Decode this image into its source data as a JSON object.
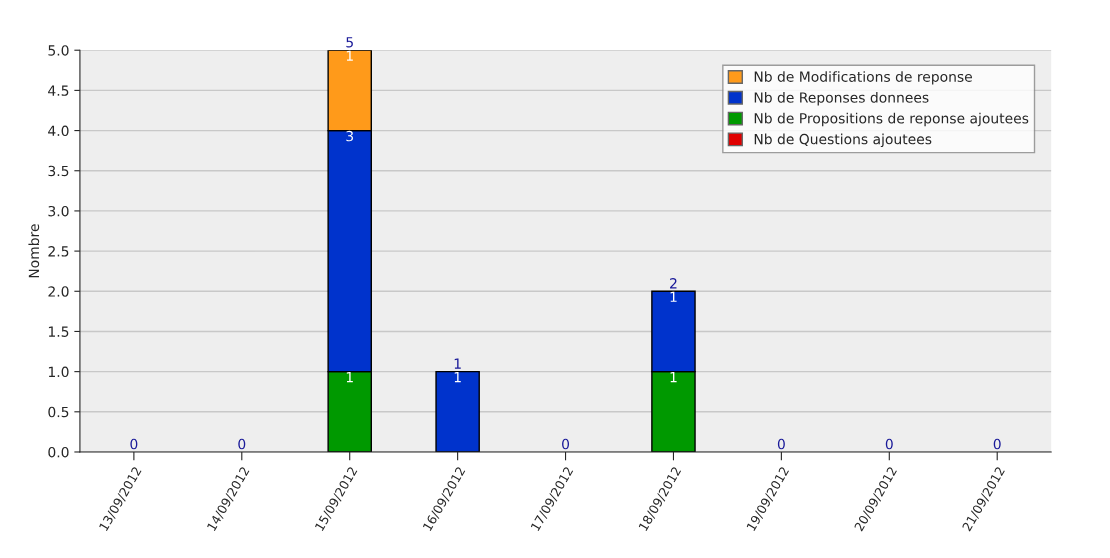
{
  "chart_data": {
    "type": "bar",
    "stacked": true,
    "ylabel": "Nombre",
    "categories": [
      "13/09/2012",
      "14/09/2012",
      "15/09/2012",
      "16/09/2012",
      "17/09/2012",
      "18/09/2012",
      "19/09/2012",
      "20/09/2012",
      "21/09/2012"
    ],
    "series": [
      {
        "name": "Nb de Questions ajoutees",
        "color": "#e00000",
        "values": [
          0,
          0,
          0,
          0,
          0,
          0,
          0,
          0,
          0
        ],
        "value_labels": [
          null,
          null,
          null,
          null,
          null,
          null,
          null,
          null,
          null
        ]
      },
      {
        "name": "Nb de Propositions de reponse ajoutees",
        "color": "#009900",
        "values": [
          0,
          0,
          1,
          0,
          0,
          1,
          0,
          0,
          0
        ],
        "value_labels": [
          null,
          null,
          "1",
          null,
          null,
          "1",
          null,
          null,
          null
        ]
      },
      {
        "name": "Nb de Reponses donnees",
        "color": "#0033cc",
        "values": [
          0,
          0,
          3,
          1,
          0,
          1,
          0,
          0,
          0
        ],
        "value_labels": [
          null,
          null,
          "3",
          "1",
          null,
          "1",
          null,
          null,
          null
        ]
      },
      {
        "name": "Nb de Modifications de reponse",
        "color": "#ff9a1a",
        "values": [
          0,
          0,
          1,
          0,
          0,
          0,
          0,
          0,
          0
        ],
        "value_labels": [
          null,
          null,
          "1",
          null,
          null,
          null,
          null,
          null,
          null
        ]
      }
    ],
    "totals": [
      "0",
      "0",
      "5",
      "1",
      "0",
      "2",
      "0",
      "0",
      "0"
    ],
    "ylim": [
      0,
      5
    ],
    "yticks": [
      {
        "value": 0,
        "label": "0.0"
      },
      {
        "value": 0.5,
        "label": "0.5"
      },
      {
        "value": 1,
        "label": "1.0"
      },
      {
        "value": 1.5,
        "label": "1.5"
      },
      {
        "value": 2,
        "label": "2.0"
      },
      {
        "value": 2.5,
        "label": "2.5"
      },
      {
        "value": 3,
        "label": "3.0"
      },
      {
        "value": 3.5,
        "label": "3.5"
      },
      {
        "value": 4,
        "label": "4.0"
      },
      {
        "value": 4.5,
        "label": "4.5"
      },
      {
        "value": 5,
        "label": "5.0"
      }
    ],
    "grid": "y",
    "legend": "top right"
  }
}
